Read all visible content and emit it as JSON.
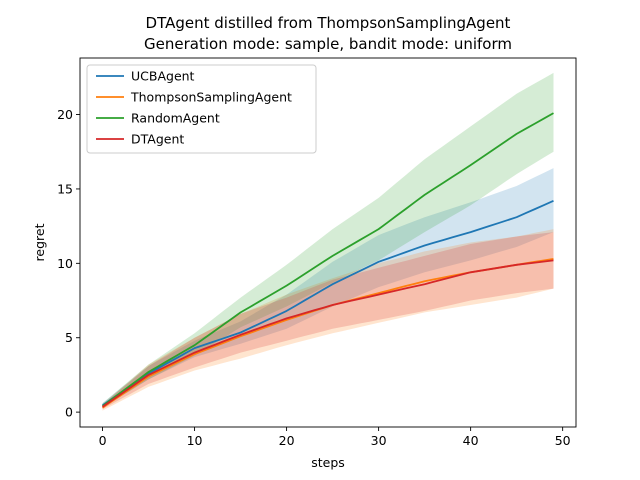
{
  "chart_data": {
    "type": "line",
    "title": "DTAgent distilled from ThompsonSamplingAgent",
    "subtitle": "Generation mode: sample, bandit mode: uniform",
    "xlabel": "steps",
    "ylabel": "regret",
    "xlim": [
      -2.45,
      51.45
    ],
    "ylim": [
      -1.0,
      23.8
    ],
    "xticks": [
      0,
      10,
      20,
      30,
      40,
      50
    ],
    "yticks": [
      0,
      5,
      10,
      15,
      20
    ],
    "grid": false,
    "legend_position": "upper-left",
    "x_anchors": [
      0,
      5,
      10,
      15,
      20,
      25,
      30,
      35,
      40,
      45,
      49
    ],
    "series": [
      {
        "name": "UCBAgent",
        "color": "#1f77b4",
        "mean": [
          0.45,
          2.6,
          4.3,
          5.35,
          6.8,
          8.6,
          10.1,
          11.2,
          12.1,
          13.1,
          14.2
        ],
        "lower": [
          0.3,
          2.2,
          3.7,
          4.6,
          5.6,
          7.1,
          8.4,
          9.4,
          10.2,
          11.1,
          12.1
        ],
        "upper": [
          0.6,
          3.1,
          4.8,
          6.1,
          7.9,
          10.1,
          11.9,
          13.1,
          14.1,
          15.2,
          16.4
        ]
      },
      {
        "name": "ThompsonSamplingAgent",
        "color": "#ff7f0e",
        "mean": [
          0.3,
          2.4,
          3.9,
          5.1,
          6.2,
          7.2,
          8.0,
          8.8,
          9.4,
          9.9,
          10.3
        ],
        "lower": [
          0.1,
          1.7,
          2.8,
          3.6,
          4.5,
          5.3,
          6.0,
          6.7,
          7.2,
          7.7,
          8.3
        ],
        "upper": [
          0.5,
          3.2,
          5.0,
          6.6,
          7.9,
          9.0,
          10.0,
          10.8,
          11.4,
          11.8,
          12.3
        ]
      },
      {
        "name": "RandomAgent",
        "color": "#2ca02c",
        "mean": [
          0.4,
          2.7,
          4.5,
          6.7,
          8.5,
          10.5,
          12.3,
          14.6,
          16.6,
          18.7,
          20.1
        ],
        "lower": [
          0.3,
          2.2,
          3.8,
          5.7,
          7.1,
          8.7,
          10.2,
          12.1,
          13.9,
          16.0,
          17.5
        ],
        "upper": [
          0.6,
          3.2,
          5.3,
          7.7,
          9.9,
          12.3,
          14.4,
          17.0,
          19.2,
          21.4,
          22.8
        ]
      },
      {
        "name": "DTAgent",
        "color": "#d62728",
        "mean": [
          0.35,
          2.5,
          4.0,
          5.2,
          6.3,
          7.2,
          7.9,
          8.6,
          9.4,
          9.9,
          10.2
        ],
        "lower": [
          0.2,
          1.9,
          3.0,
          4.0,
          4.8,
          5.6,
          6.2,
          6.8,
          7.5,
          8.0,
          8.3
        ],
        "upper": [
          0.5,
          3.1,
          5.0,
          6.6,
          7.7,
          8.9,
          9.7,
          10.5,
          11.3,
          11.8,
          12.1
        ]
      }
    ]
  }
}
